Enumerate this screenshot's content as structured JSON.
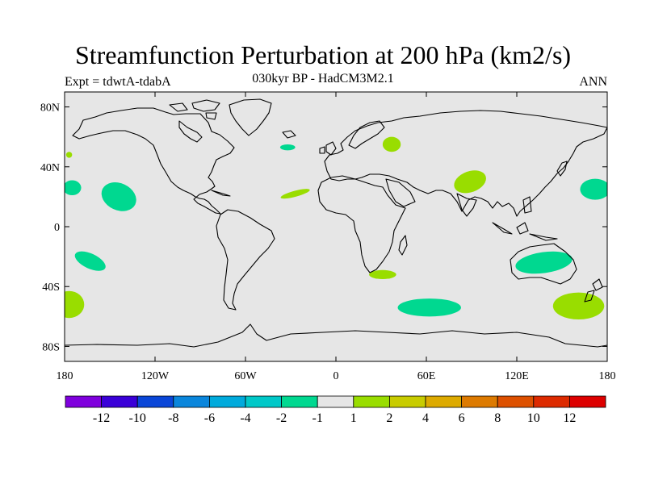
{
  "title": "Streamfunction Perturbation at 200 hPa (km2/s)",
  "experiment_label": "Expt = tdwtA-tdabA",
  "subtitle": "030kyr BP - HadCM3M2.1",
  "season": "ANN",
  "map": {
    "projection": "cylindrical equidistant",
    "lon_range": [
      -180,
      180
    ],
    "lat_range": [
      -90,
      90
    ],
    "background_color": "#e6e6e6",
    "coastline_color": "#000000",
    "lat_ticks": [
      {
        "value": 80,
        "label": "80N"
      },
      {
        "value": 40,
        "label": "40N"
      },
      {
        "value": 0,
        "label": "0"
      },
      {
        "value": -40,
        "label": "40S"
      },
      {
        "value": -80,
        "label": "80S"
      }
    ],
    "lon_ticks": [
      {
        "value": -180,
        "label": "180"
      },
      {
        "value": -120,
        "label": "120W"
      },
      {
        "value": -60,
        "label": "60W"
      },
      {
        "value": 0,
        "label": "0"
      },
      {
        "value": 60,
        "label": "60E"
      },
      {
        "value": 120,
        "label": "120E"
      },
      {
        "value": 180,
        "label": "180"
      }
    ],
    "anomaly_regions": [
      {
        "lon": -144,
        "lat": 20,
        "rlon": 12,
        "rlat": 9,
        "rot": 25,
        "level": "-2 to -1",
        "color": "#00d890"
      },
      {
        "lon": -175,
        "lat": 26,
        "rlon": 6,
        "rlat": 5,
        "rot": 0,
        "level": "-2 to -1",
        "color": "#00d890"
      },
      {
        "lon": -163,
        "lat": -23,
        "rlon": 11,
        "rlat": 5,
        "rot": 25,
        "level": "-2 to -1",
        "color": "#00d890"
      },
      {
        "lon": 62,
        "lat": -54,
        "rlon": 21,
        "rlat": 6,
        "rot": 0,
        "level": "-2 to -1",
        "color": "#00d890"
      },
      {
        "lon": 138,
        "lat": -24,
        "rlon": 19,
        "rlat": 7,
        "rot": -8,
        "level": "-2 to -1",
        "color": "#00d890"
      },
      {
        "lon": 172,
        "lat": 25,
        "rlon": 10,
        "rlat": 7,
        "rot": 0,
        "level": "-2 to -1",
        "color": "#00d890"
      },
      {
        "lon": -32,
        "lat": 53,
        "rlon": 5,
        "rlat": 2,
        "rot": 0,
        "level": "-2 to -1",
        "color": "#00d890"
      },
      {
        "lon": 89,
        "lat": 30,
        "rlon": 11,
        "rlat": 7,
        "rot": -20,
        "level": "1 to 2",
        "color": "#99dd00"
      },
      {
        "lon": 37,
        "lat": 55,
        "rlon": 6,
        "rlat": 5,
        "rot": 0,
        "level": "1 to 2",
        "color": "#99dd00"
      },
      {
        "lon": -27,
        "lat": 22,
        "rlon": 10,
        "rlat": 2,
        "rot": -15,
        "level": "1 to 2",
        "color": "#99dd00"
      },
      {
        "lon": 31,
        "lat": -32,
        "rlon": 9,
        "rlat": 3,
        "rot": 0,
        "level": "1 to 2",
        "color": "#99dd00"
      },
      {
        "lon": 161,
        "lat": -53,
        "rlon": 17,
        "rlat": 9,
        "rot": 0,
        "level": "1 to 2",
        "color": "#99dd00"
      },
      {
        "lon": -177,
        "lat": -52,
        "rlon": 10,
        "rlat": 9,
        "rot": 0,
        "level": "1 to 2",
        "color": "#99dd00"
      },
      {
        "lon": -177,
        "lat": 48,
        "rlon": 2,
        "rlat": 2,
        "rot": 0,
        "level": "1 to 2",
        "color": "#99dd00"
      }
    ]
  },
  "colorbar": {
    "labels": [
      "-12",
      "-10",
      "-8",
      "-6",
      "-4",
      "-2",
      "-1",
      "1",
      "2",
      "4",
      "6",
      "8",
      "10",
      "12"
    ],
    "colors": [
      "#7f00dd",
      "#3a00d8",
      "#0a46d8",
      "#0a86dc",
      "#00aadc",
      "#00c8c8",
      "#00d890",
      "#e6e6e6",
      "#99dd00",
      "#c8cc00",
      "#ddaa00",
      "#dd7a00",
      "#dd5000",
      "#dd2a00",
      "#dd0000"
    ]
  }
}
